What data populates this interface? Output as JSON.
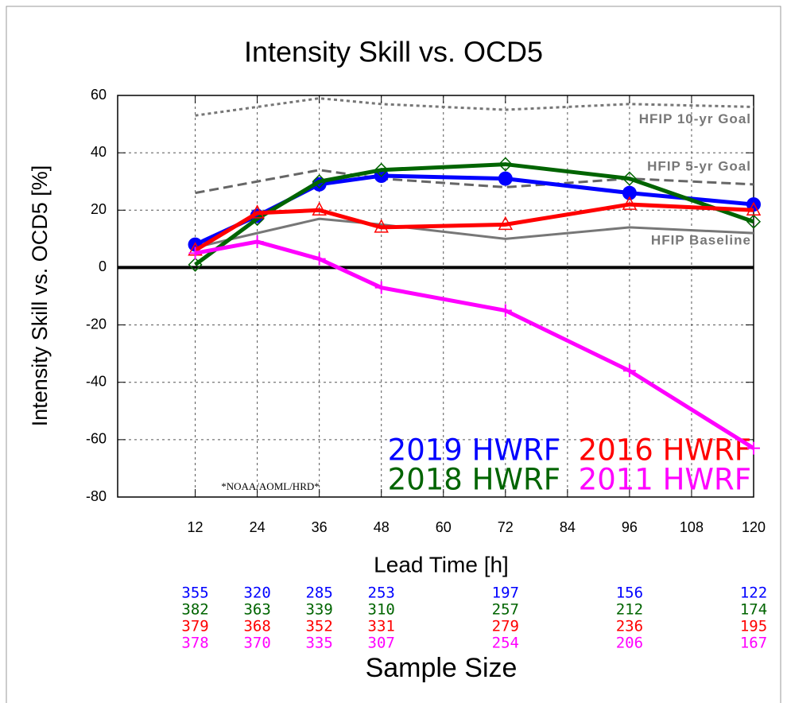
{
  "chart_data": {
    "type": "line",
    "title": "Intensity Skill vs. OCD5",
    "y_label": "Intensity Skill vs. OCD5 [%]",
    "x_label": "Lead Time [h]",
    "sample_size_label": "Sample Size",
    "annotation": "*NOAA/AOML/HRD*",
    "x": [
      12,
      24,
      36,
      48,
      72,
      96,
      120
    ],
    "xlim": [
      -3,
      120
    ],
    "xticks": [
      12,
      24,
      36,
      48,
      60,
      72,
      84,
      96,
      108,
      120
    ],
    "ylim": [
      -80,
      60
    ],
    "yticks": [
      -80,
      -60,
      -40,
      -20,
      0,
      20,
      40,
      60
    ],
    "grid": true,
    "series": [
      {
        "name": "2019 HWRF",
        "color": "#0000ff",
        "marker": "circle",
        "values": [
          8,
          18,
          29,
          32,
          31,
          26,
          22
        ],
        "sample_size": [
          355,
          320,
          285,
          253,
          197,
          156,
          122
        ]
      },
      {
        "name": "2018 HWRF",
        "color": "#006400",
        "marker": "diamond",
        "values": [
          1,
          17,
          30,
          34,
          36,
          31,
          16
        ],
        "sample_size": [
          382,
          363,
          339,
          310,
          257,
          212,
          174
        ]
      },
      {
        "name": "2016 HWRF",
        "color": "#ff0000",
        "marker": "triangle",
        "values": [
          6,
          19,
          20,
          14,
          15,
          22,
          20
        ],
        "sample_size": [
          379,
          368,
          352,
          331,
          279,
          236,
          195
        ]
      },
      {
        "name": "2011 HWRF",
        "color": "#ff00ff",
        "marker": "plus",
        "values": [
          5,
          9,
          3,
          -7,
          -15,
          -36,
          -63
        ],
        "sample_size": [
          378,
          370,
          335,
          307,
          254,
          206,
          167
        ]
      }
    ],
    "references": [
      {
        "name": "HFIP 10-yr Goal",
        "color": "#777777",
        "line_style": "dotted",
        "values": [
          53,
          56,
          59,
          57,
          55,
          57,
          56
        ]
      },
      {
        "name": "HFIP 5-yr Goal",
        "color": "#666666",
        "line_style": "dashed",
        "values": [
          26,
          30,
          34,
          31,
          28,
          31,
          29
        ]
      },
      {
        "name": "HFIP Baseline",
        "color": "#777777",
        "line_style": "solid",
        "values": [
          7,
          12,
          17,
          15,
          10,
          14,
          12
        ]
      }
    ]
  }
}
